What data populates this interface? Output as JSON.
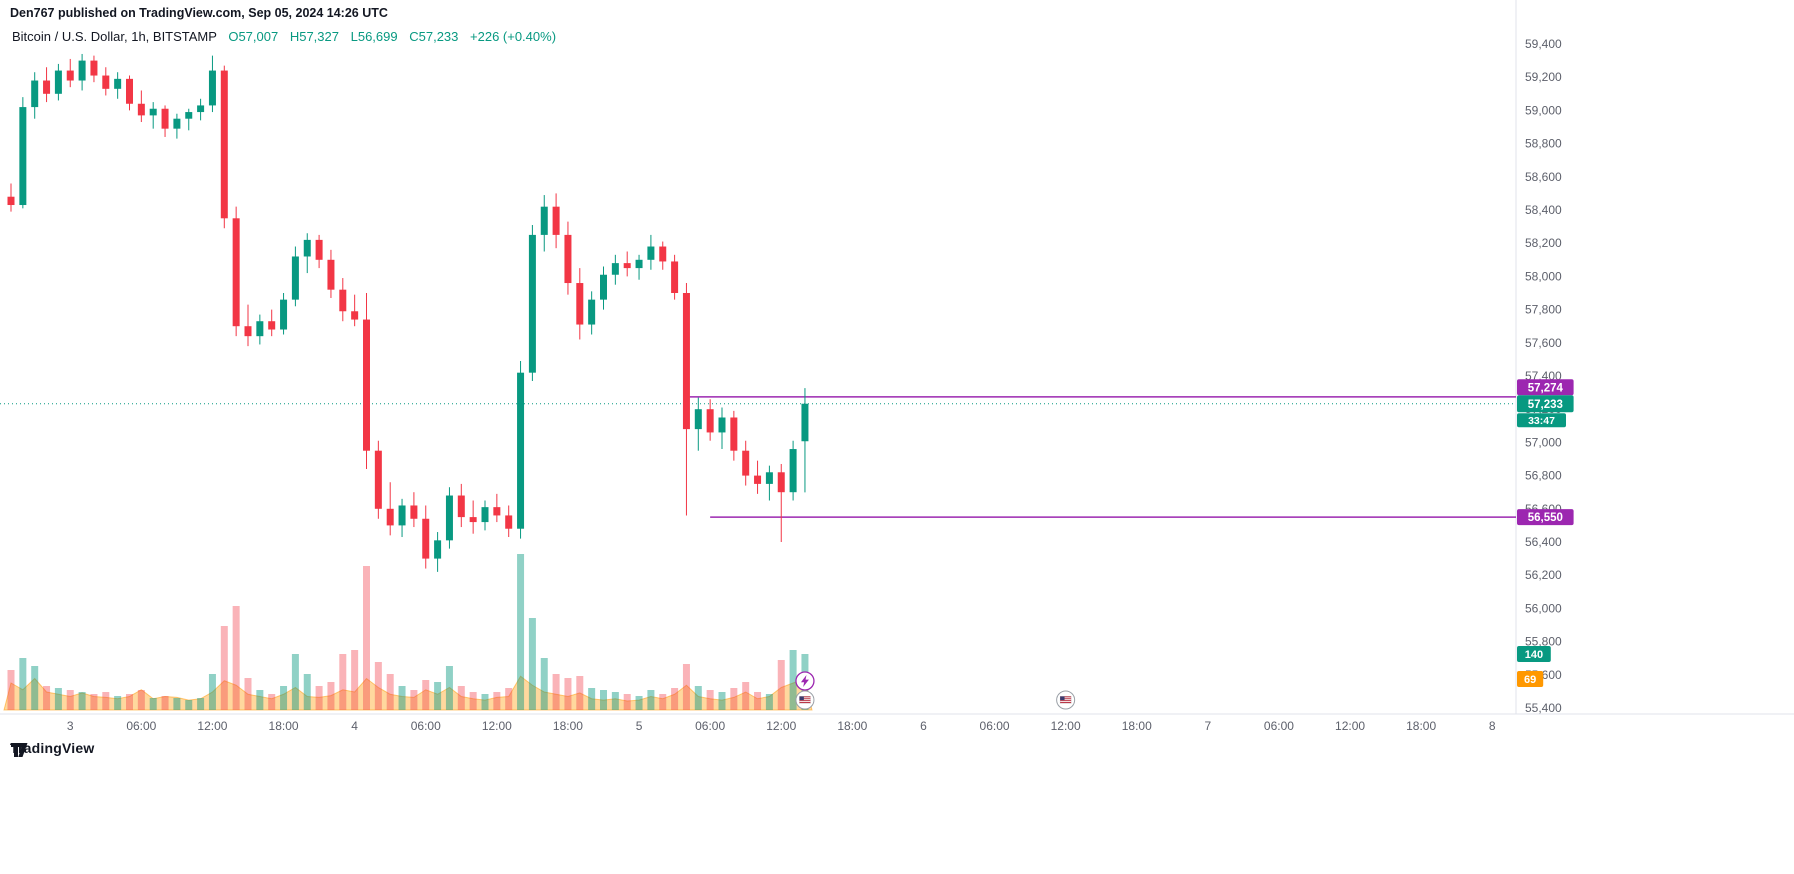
{
  "header": {
    "attribution": "Den767 published on TradingView.com, Sep 05, 2024 14:26 UTC",
    "symbol": "Bitcoin / U.S. Dollar, 1h, BITSTAMP",
    "ohlc": {
      "open": "O57,007",
      "high": "H57,327",
      "low": "L56,699",
      "close": "C57,233",
      "change": "+226 (+0.40%)"
    }
  },
  "footer": {
    "brand": "TradingView"
  },
  "colors": {
    "up": "#089981",
    "down": "#f23645",
    "purple": "#9c27b0",
    "orange": "#ff9800",
    "axis_text": "#5d606b",
    "header_text": "#131722",
    "axis_border": "#e0e3eb"
  },
  "chart_data": {
    "type": "candlestick",
    "title": "Bitcoin / U.S. Dollar",
    "exchange": "BITSTAMP",
    "interval": "1h",
    "y_axis": {
      "min": 55400,
      "max": 59400,
      "step": 200,
      "labels": [
        "59,400",
        "59,200",
        "59,000",
        "58,800",
        "58,600",
        "58,400",
        "58,200",
        "58,000",
        "57,800",
        "57,600",
        "57,400",
        "57,200",
        "57,000",
        "56,800",
        "56,600",
        "56,400",
        "56,200",
        "56,000",
        "55,800",
        "55,600",
        "55,400"
      ]
    },
    "x_axis": {
      "labels": [
        {
          "text": "3",
          "idx": 5
        },
        {
          "text": "06:00",
          "idx": 11
        },
        {
          "text": "12:00",
          "idx": 17
        },
        {
          "text": "18:00",
          "idx": 23
        },
        {
          "text": "4",
          "idx": 29
        },
        {
          "text": "06:00",
          "idx": 35
        },
        {
          "text": "12:00",
          "idx": 41
        },
        {
          "text": "18:00",
          "idx": 47
        },
        {
          "text": "5",
          "idx": 53
        },
        {
          "text": "06:00",
          "idx": 59
        },
        {
          "text": "12:00",
          "idx": 65
        },
        {
          "text": "18:00",
          "idx": 71
        },
        {
          "text": "6",
          "idx": 77
        },
        {
          "text": "06:00",
          "idx": 83
        },
        {
          "text": "12:00",
          "idx": 89
        },
        {
          "text": "18:00",
          "idx": 95
        },
        {
          "text": "7",
          "idx": 101
        },
        {
          "text": "06:00",
          "idx": 107
        },
        {
          "text": "12:00",
          "idx": 113
        },
        {
          "text": "18:00",
          "idx": 119
        },
        {
          "text": "8",
          "idx": 125
        }
      ]
    },
    "candle_fields": [
      "time",
      "open",
      "high",
      "low",
      "close",
      "volume"
    ],
    "candles": [
      [
        "Sep 2 19:00",
        58480,
        58560,
        58390,
        58430,
        100
      ],
      [
        "Sep 2 20:00",
        58430,
        59080,
        58410,
        59020,
        130
      ],
      [
        "Sep 2 21:00",
        59020,
        59230,
        58950,
        59180,
        110
      ],
      [
        "Sep 2 22:00",
        59180,
        59260,
        59050,
        59100,
        60
      ],
      [
        "Sep 2 23:00",
        59100,
        59280,
        59060,
        59240,
        55
      ],
      [
        "Sep 3 00:00",
        59240,
        59310,
        59140,
        59180,
        50
      ],
      [
        "Sep 3 01:00",
        59180,
        59340,
        59120,
        59300,
        45
      ],
      [
        "Sep 3 02:00",
        59300,
        59330,
        59170,
        59210,
        40
      ],
      [
        "Sep 3 03:00",
        59210,
        59260,
        59090,
        59130,
        45
      ],
      [
        "Sep 3 04:00",
        59130,
        59230,
        59070,
        59190,
        35
      ],
      [
        "Sep 3 05:00",
        59190,
        59210,
        59000,
        59040,
        40
      ],
      [
        "Sep 3 06:00",
        59040,
        59120,
        58930,
        58970,
        50
      ],
      [
        "Sep 3 07:00",
        58970,
        59050,
        58890,
        59010,
        30
      ],
      [
        "Sep 3 08:00",
        59010,
        59030,
        58840,
        58890,
        35
      ],
      [
        "Sep 3 09:00",
        58890,
        58980,
        58830,
        58950,
        30
      ],
      [
        "Sep 3 10:00",
        58950,
        59010,
        58880,
        58990,
        25
      ],
      [
        "Sep 3 11:00",
        58990,
        59070,
        58940,
        59030,
        30
      ],
      [
        "Sep 3 12:00",
        59030,
        59330,
        58990,
        59240,
        90
      ],
      [
        "Sep 3 13:00",
        59240,
        59270,
        58290,
        58350,
        210
      ],
      [
        "Sep 3 14:00",
        58350,
        58420,
        57640,
        57700,
        260
      ],
      [
        "Sep 3 15:00",
        57700,
        57830,
        57580,
        57640,
        80
      ],
      [
        "Sep 3 16:00",
        57640,
        57770,
        57590,
        57730,
        50
      ],
      [
        "Sep 3 17:00",
        57730,
        57800,
        57640,
        57680,
        40
      ],
      [
        "Sep 3 18:00",
        57680,
        57900,
        57650,
        57860,
        60
      ],
      [
        "Sep 3 19:00",
        57860,
        58180,
        57820,
        58120,
        140
      ],
      [
        "Sep 3 20:00",
        58120,
        58260,
        58020,
        58220,
        90
      ],
      [
        "Sep 3 21:00",
        58220,
        58250,
        58050,
        58100,
        60
      ],
      [
        "Sep 3 22:00",
        58100,
        58160,
        57870,
        57920,
        70
      ],
      [
        "Sep 3 23:00",
        57920,
        57990,
        57730,
        57790,
        140
      ],
      [
        "Sep 4 00:00",
        57790,
        57890,
        57700,
        57740,
        150
      ],
      [
        "Sep 4 01:00",
        57740,
        57900,
        56840,
        56950,
        360
      ],
      [
        "Sep 4 02:00",
        56950,
        57010,
        56540,
        56600,
        120
      ],
      [
        "Sep 4 03:00",
        56600,
        56760,
        56440,
        56500,
        90
      ],
      [
        "Sep 4 04:00",
        56500,
        56660,
        56430,
        56620,
        60
      ],
      [
        "Sep 4 05:00",
        56620,
        56700,
        56490,
        56540,
        50
      ],
      [
        "Sep 4 06:00",
        56540,
        56620,
        56240,
        56300,
        75
      ],
      [
        "Sep 4 07:00",
        56300,
        56460,
        56220,
        56410,
        70
      ],
      [
        "Sep 4 08:00",
        56410,
        56730,
        56360,
        56680,
        110
      ],
      [
        "Sep 4 09:00",
        56680,
        56750,
        56490,
        56550,
        60
      ],
      [
        "Sep 4 10:00",
        56550,
        56650,
        56450,
        56520,
        45
      ],
      [
        "Sep 4 11:00",
        56520,
        56650,
        56470,
        56610,
        40
      ],
      [
        "Sep 4 12:00",
        56610,
        56690,
        56520,
        56560,
        45
      ],
      [
        "Sep 4 13:00",
        56560,
        56620,
        56430,
        56480,
        55
      ],
      [
        "Sep 4 14:00",
        56480,
        57490,
        56420,
        57420,
        390
      ],
      [
        "Sep 4 15:00",
        57420,
        58310,
        57370,
        58250,
        230
      ],
      [
        "Sep 4 16:00",
        58250,
        58490,
        58150,
        58420,
        130
      ],
      [
        "Sep 4 17:00",
        58420,
        58500,
        58170,
        58250,
        90
      ],
      [
        "Sep 4 18:00",
        58250,
        58330,
        57890,
        57960,
        80
      ],
      [
        "Sep 4 19:00",
        57960,
        58050,
        57620,
        57710,
        85
      ],
      [
        "Sep 4 20:00",
        57710,
        57910,
        57650,
        57860,
        55
      ],
      [
        "Sep 4 21:00",
        57860,
        58060,
        57800,
        58010,
        50
      ],
      [
        "Sep 4 22:00",
        58010,
        58130,
        57950,
        58080,
        45
      ],
      [
        "Sep 4 23:00",
        58080,
        58150,
        58000,
        58050,
        40
      ],
      [
        "Sep 5 00:00",
        58050,
        58130,
        57980,
        58100,
        35
      ],
      [
        "Sep 5 01:00",
        58100,
        58250,
        58040,
        58180,
        50
      ],
      [
        "Sep 5 02:00",
        58180,
        58210,
        58040,
        58090,
        40
      ],
      [
        "Sep 5 03:00",
        58090,
        58130,
        57860,
        57900,
        55
      ],
      [
        "Sep 5 04:00",
        57900,
        57960,
        56560,
        57080,
        115
      ],
      [
        "Sep 5 05:00",
        57080,
        57270,
        56950,
        57200,
        60
      ],
      [
        "Sep 5 06:00",
        57200,
        57260,
        57010,
        57060,
        50
      ],
      [
        "Sep 5 07:00",
        57060,
        57210,
        56960,
        57150,
        45
      ],
      [
        "Sep 5 08:00",
        57150,
        57190,
        56890,
        56950,
        55
      ],
      [
        "Sep 5 09:00",
        56950,
        57010,
        56740,
        56800,
        70
      ],
      [
        "Sep 5 10:00",
        56800,
        56890,
        56690,
        56750,
        45
      ],
      [
        "Sep 5 11:00",
        56750,
        56860,
        56650,
        56820,
        40
      ],
      [
        "Sep 5 12:00",
        56820,
        56870,
        56400,
        56700,
        125
      ],
      [
        "Sep 5 13:00",
        56700,
        57010,
        56650,
        56960,
        150
      ],
      [
        "Sep 5 14:00",
        57007,
        57327,
        56699,
        57233,
        140
      ]
    ],
    "volume": {
      "last_label": "140"
    },
    "orange_indicator": {
      "last_label": "69",
      "values": [
        60,
        45,
        70,
        40,
        35,
        30,
        38,
        30,
        28,
        25,
        30,
        45,
        25,
        30,
        28,
        22,
        25,
        40,
        65,
        55,
        35,
        30,
        25,
        35,
        50,
        30,
        28,
        32,
        45,
        40,
        70,
        50,
        35,
        30,
        28,
        45,
        35,
        50,
        30,
        25,
        22,
        28,
        30,
        75,
        55,
        40,
        35,
        30,
        38,
        25,
        22,
        25,
        20,
        22,
        30,
        25,
        35,
        55,
        30,
        25,
        22,
        28,
        40,
        25,
        30,
        50,
        60,
        69
      ]
    },
    "levels": [
      {
        "price": 57274,
        "label": "57,274",
        "start_idx": 57
      },
      {
        "price": 56550,
        "label": "56,550",
        "start_idx": 59
      }
    ],
    "current_price": {
      "value": 57233,
      "label": "57,233",
      "countdown": "33:47"
    },
    "markers": [
      {
        "type": "lightning-icon",
        "idx": 67,
        "row": 0
      },
      {
        "type": "us-flag-icon",
        "idx": 67,
        "row": 1
      },
      {
        "type": "us-flag-icon",
        "idx": 89,
        "row": 1
      }
    ]
  }
}
